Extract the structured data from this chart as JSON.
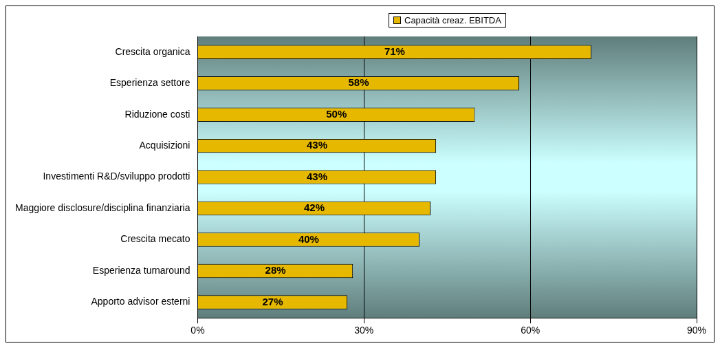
{
  "chart_data": {
    "type": "bar",
    "orientation": "horizontal",
    "categories": [
      "Crescita organica",
      "Esperienza settore",
      "Riduzione costi",
      "Acquisizioni",
      "Investimenti R&D/sviluppo prodotti",
      "Maggiore disclosure/disciplina finanziaria",
      "Crescita mecato",
      "Esperienza turnaround",
      "Apporto advisor esterni"
    ],
    "series": [
      {
        "name": "Capacità creaz. EBITDA",
        "color": "#e6b800",
        "values": [
          71,
          58,
          50,
          43,
          43,
          42,
          40,
          28,
          27
        ],
        "value_labels": [
          "71%",
          "58%",
          "50%",
          "43%",
          "43%",
          "42%",
          "40%",
          "28%",
          "27%"
        ]
      }
    ],
    "xlim": [
      0,
      90
    ],
    "xticks": [
      {
        "value": 0,
        "label": "0%"
      },
      {
        "value": 30,
        "label": "30%"
      },
      {
        "value": 60,
        "label": "60%"
      },
      {
        "value": 90,
        "label": "90%"
      }
    ],
    "grid": "x",
    "legend": "top"
  }
}
